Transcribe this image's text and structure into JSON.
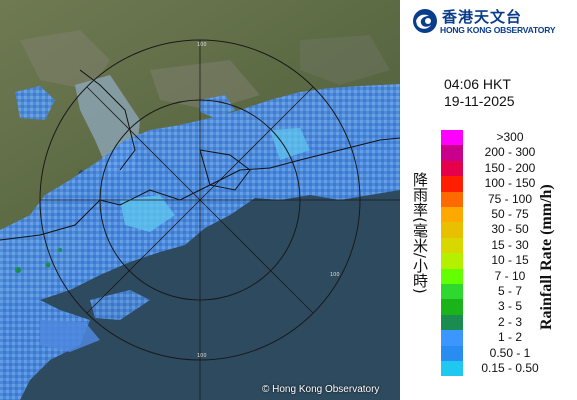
{
  "brand": {
    "name_zh": "香港天文台",
    "name_en": "HONG KONG OBSERVATORY",
    "emblem_icon": "hko-logo-icon"
  },
  "observation": {
    "time": "04:06 HKT",
    "date": "19-11-2025"
  },
  "map": {
    "copyright": "© Hong Kong Observatory",
    "range_ring_label": "100"
  },
  "legend": {
    "title_zh": "降雨率(毫米/小時)",
    "title_en": "Rainfall Rate (mm/h)",
    "items": [
      {
        "label": ">300",
        "color": "#ff00ff"
      },
      {
        "label": "200 - 300",
        "color": "#c8008c"
      },
      {
        "label": "150 - 200",
        "color": "#e6004b"
      },
      {
        "label": "100 - 150",
        "color": "#ff1e00"
      },
      {
        "label": "75 - 100",
        "color": "#ff6a00"
      },
      {
        "label": "50 - 75",
        "color": "#ffa800"
      },
      {
        "label": "30 - 50",
        "color": "#e8c000"
      },
      {
        "label": "15 - 30",
        "color": "#d8d800"
      },
      {
        "label": "10 - 15",
        "color": "#b4f000"
      },
      {
        "label": "7 - 10",
        "color": "#64ff00"
      },
      {
        "label": "5 - 7",
        "color": "#2ed82e"
      },
      {
        "label": "3 - 5",
        "color": "#1ab41a"
      },
      {
        "label": "2 - 3",
        "color": "#1a8c50"
      },
      {
        "label": "1 - 2",
        "color": "#3c96ff"
      },
      {
        "label": "0.50 - 1",
        "color": "#288cf0"
      },
      {
        "label": "0.15 - 0.50",
        "color": "#1ec8f0"
      }
    ]
  }
}
